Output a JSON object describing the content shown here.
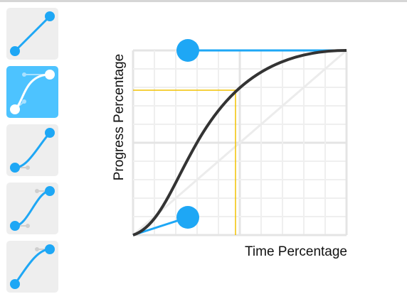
{
  "axes": {
    "x_label": "Time Percentage",
    "y_label": "Progress Percentage"
  },
  "presets": [
    {
      "icon": "linear-curve-icon",
      "selected": false
    },
    {
      "icon": "ease-curve-icon",
      "selected": true
    },
    {
      "icon": "ease-in-curve-icon",
      "selected": false
    },
    {
      "icon": "ease-in-out-curve-icon",
      "selected": false
    },
    {
      "icon": "ease-out-curve-icon",
      "selected": false
    }
  ],
  "bezier": {
    "p1": [
      0.25,
      0.1
    ],
    "p2": [
      0.25,
      1.0
    ]
  },
  "guide_point": {
    "time": 0.48,
    "progress": 0.79
  },
  "colors": {
    "accent": "#1ea7f5",
    "curve": "#333333",
    "grid": "#e8e8e8",
    "guide": "#f2c200",
    "preset_bg": "#eeeeee",
    "preset_active_bg": "#4dc3ff"
  }
}
